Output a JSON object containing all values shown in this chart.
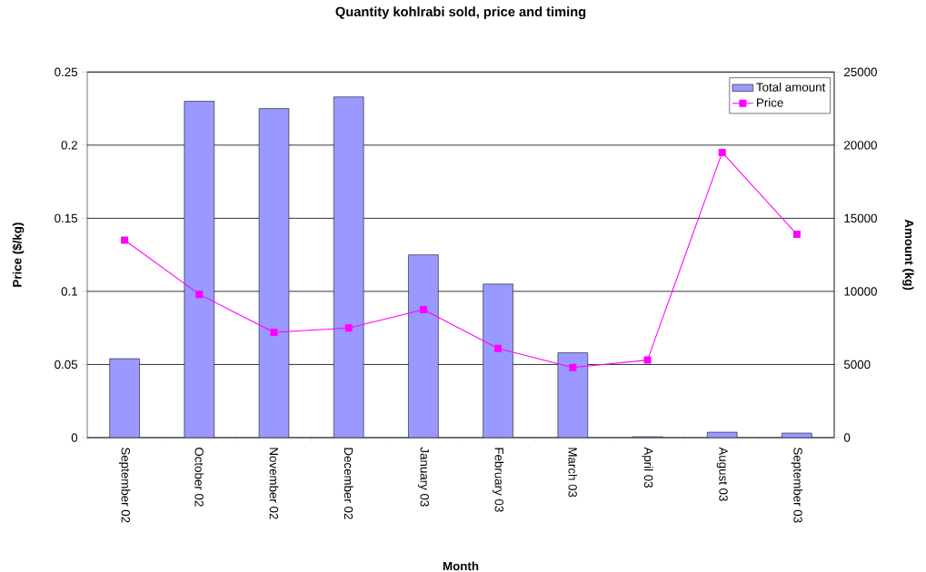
{
  "chart_data": {
    "type": "bar",
    "title": "Quantity kohlrabi sold, price and timing",
    "xlabel": "Month",
    "ylabel": "Price ($/kg)",
    "y2label": "Amount (kg)",
    "categories": [
      "September 02",
      "October 02",
      "November 02",
      "December 02",
      "January 03",
      "February 03",
      "March 03",
      "April 03",
      "August 03",
      "September 03"
    ],
    "series": [
      {
        "name": "Total amount",
        "axis": "y2",
        "color": "#9999ff",
        "values": [
          5400,
          23000,
          22500,
          23300,
          12500,
          10500,
          5800,
          60,
          370,
          310
        ]
      },
      {
        "name": "Price",
        "type": "line",
        "color": "#ff00ff",
        "values": [
          0.135,
          0.098,
          0.072,
          0.075,
          0.0875,
          0.061,
          0.048,
          0.053,
          0.195,
          0.139
        ]
      }
    ],
    "ylim": [
      0,
      0.25
    ],
    "yticks": [
      0,
      0.05,
      0.1,
      0.15,
      0.2,
      0.25
    ],
    "y2lim": [
      0,
      25000
    ],
    "y2ticks": [
      0,
      5000,
      10000,
      15000,
      20000,
      25000
    ],
    "grid": "y",
    "legend": "top right",
    "marker": "square"
  }
}
